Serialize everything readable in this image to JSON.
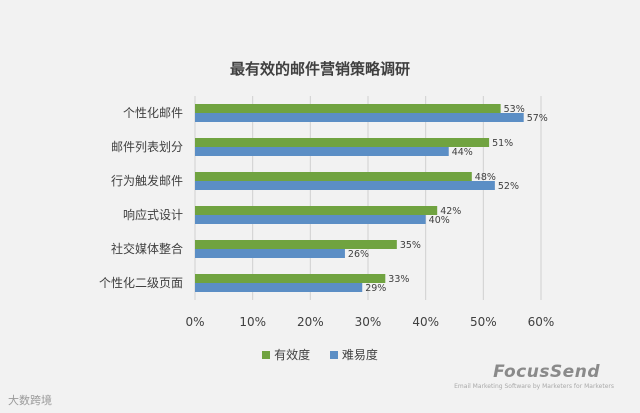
{
  "colors": {
    "effectiveness": "#70a340",
    "difficulty": "#5b8ec5",
    "grid": "#d0d0d0",
    "text": "#404040"
  },
  "chart_data": {
    "type": "bar",
    "orientation": "horizontal",
    "title": "最有效的邮件营销策略调研",
    "categories": [
      "个性化邮件",
      "邮件列表划分",
      "行为触发邮件",
      "响应式设计",
      "社交媒体整合",
      "个性化二级页面"
    ],
    "series": [
      {
        "name": "有效度",
        "values": [
          53,
          51,
          48,
          42,
          35,
          33
        ],
        "labels": [
          "53%",
          "51%",
          "48%",
          "42%",
          "35%",
          "33%"
        ]
      },
      {
        "name": "难易度",
        "values": [
          57,
          44,
          52,
          40,
          26,
          29
        ],
        "labels": [
          "57%",
          "44%",
          "52%",
          "40%",
          "26%",
          "29%"
        ]
      }
    ],
    "xlim": [
      0,
      60
    ],
    "xticks": [
      "0%",
      "10%",
      "20%",
      "30%",
      "40%",
      "50%",
      "60%"
    ],
    "grid": true,
    "legend": "bottom"
  },
  "footer": {
    "watermark": "大数跨境",
    "brand": "FocusSend",
    "brand_tagline": "Email Marketing Software by Marketers for Marketers"
  }
}
